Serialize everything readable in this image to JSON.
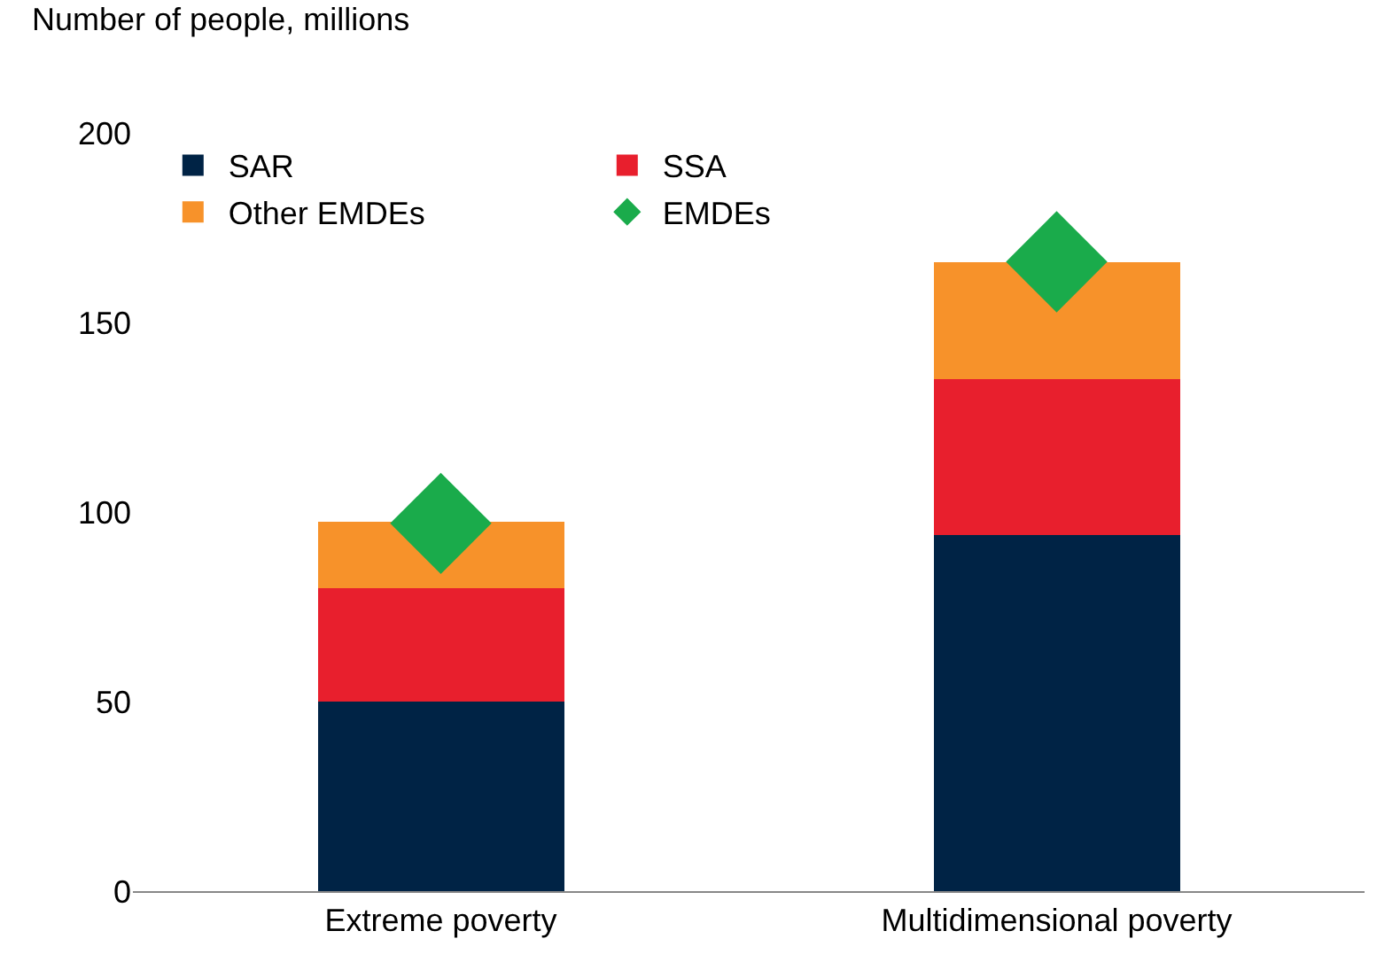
{
  "chart_data": {
    "type": "bar",
    "stacked": true,
    "ylabel": "Number of people, millions",
    "categories": [
      "Extreme poverty",
      "Multidimensional poverty"
    ],
    "series": [
      {
        "name": "SAR",
        "color": "#002345",
        "values": [
          50,
          94
        ]
      },
      {
        "name": "SSA",
        "color": "#e81f2d",
        "values": [
          30,
          41
        ]
      },
      {
        "name": "Other EMDEs",
        "color": "#f7922a",
        "values": [
          17.5,
          31
        ]
      },
      {
        "name": "EMDEs",
        "type": "scatter",
        "marker": "diamond",
        "color": "#1aab4b",
        "values": [
          97,
          166
        ]
      }
    ],
    "ylim": [
      0,
      200
    ],
    "yticks": [
      0,
      50,
      100,
      150,
      200
    ],
    "legend": "top left"
  }
}
